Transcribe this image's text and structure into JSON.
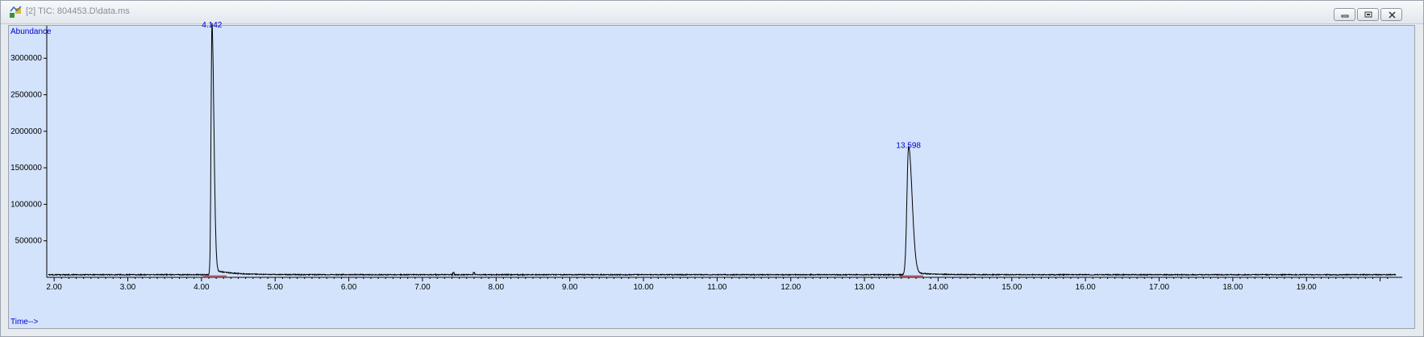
{
  "window": {
    "title": "[2] TIC: 804453.D\\data.ms",
    "icon": "chromatogram-app-icon",
    "buttons": [
      "minimize",
      "restore",
      "close"
    ]
  },
  "chart_data": {
    "type": "line",
    "ylabel": "Abundance",
    "xlabel": "Time-->",
    "xlim": [
      1.9,
      20.3
    ],
    "ylim": [
      0,
      3400000
    ],
    "x_ticks": [
      "2.00",
      "3.00",
      "4.00",
      "5.00",
      "6.00",
      "7.00",
      "8.00",
      "9.00",
      "10.00",
      "11.00",
      "12.00",
      "13.00",
      "14.00",
      "15.00",
      "16.00",
      "17.00",
      "18.00",
      "19.00"
    ],
    "x_tick_values": [
      2,
      3,
      4,
      5,
      6,
      7,
      8,
      9,
      10,
      11,
      12,
      13,
      14,
      15,
      16,
      17,
      18,
      19
    ],
    "y_ticks": [
      "500000",
      "1000000",
      "1500000",
      "2000000",
      "2500000",
      "3000000"
    ],
    "y_tick_values": [
      500000,
      1000000,
      1500000,
      2000000,
      2500000,
      3000000
    ],
    "peaks": [
      {
        "label": "4.142",
        "rt": 4.142,
        "height": 3380000,
        "width": 0.012
      },
      {
        "label": "13.598",
        "rt": 13.598,
        "height": 1730000,
        "width": 0.022
      }
    ],
    "baseline": 30000,
    "colors": {
      "trace": "#000000",
      "peak_label": "#0000cc",
      "axis_label": "#0000cc",
      "background": "#d3e3fb",
      "integration": "#cc0000"
    }
  }
}
